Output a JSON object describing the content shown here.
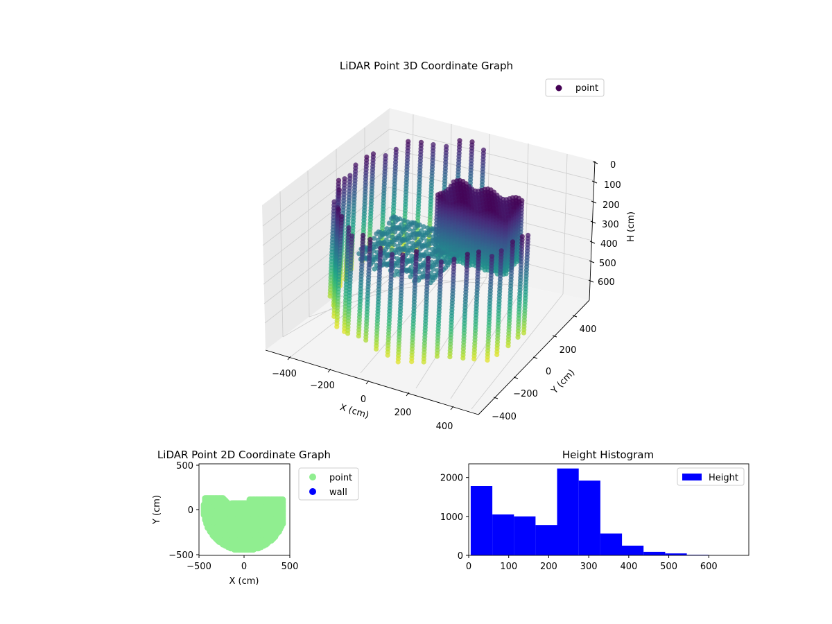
{
  "colors": {
    "point2d": "#90ee90",
    "wall2d": "#0000ff",
    "hist": "#0000ff",
    "viridis_dark": "#440154",
    "viridis_light": "#fde725"
  },
  "chart_data": [
    {
      "type": "scatter",
      "projection": "3d",
      "title": "LiDAR Point 3D Coordinate Graph",
      "xlabel": "X (cm)",
      "ylabel": "Y (cm)",
      "zlabel": "H (cm)",
      "xlim": [
        -500,
        450
      ],
      "ylim": [
        -500,
        450
      ],
      "zlim": [
        0,
        650
      ],
      "z_inverted": true,
      "colormap": "viridis",
      "color_by": "H",
      "grid": true,
      "legend": {
        "position": "top-right",
        "entries": [
          {
            "name": "point"
          }
        ]
      },
      "x_ticks": [
        "−400",
        "−200",
        "0",
        "200",
        "400"
      ],
      "y_ticks": [
        "−400",
        "−200",
        "0",
        "200",
        "400"
      ],
      "z_ticks": [
        "0",
        "100",
        "200",
        "300",
        "400",
        "500",
        "600"
      ],
      "series": [
        {
          "name": "wall",
          "description": "columns of points along a circular wall, heights 0–600",
          "radius": 420,
          "angle_range": [
            95,
            355
          ],
          "h_range": [
            30,
            560
          ]
        },
        {
          "name": "block",
          "description": "raised block near the back (x 0–300, y 0–150)",
          "x_range": [
            -20,
            300
          ],
          "y_range": [
            0,
            150
          ],
          "h_range": [
            20,
            320
          ]
        },
        {
          "name": "floor",
          "description": "floor plate in the middle",
          "x_range": [
            -250,
            100
          ],
          "y_range": [
            -250,
            100
          ],
          "h_value": 260
        }
      ]
    },
    {
      "type": "scatter",
      "title": "LiDAR Point 2D Coordinate Graph",
      "xlabel": "X (cm)",
      "ylabel": "Y (cm)",
      "xlim": [
        -500,
        500
      ],
      "ylim": [
        -500,
        500
      ],
      "x_ticks": [
        "−500",
        "0",
        "500"
      ],
      "y_ticks": [
        "−500",
        "0",
        "500"
      ],
      "legend": {
        "position": "outside-right",
        "entries": [
          {
            "name": "point"
          },
          {
            "name": "wall"
          }
        ]
      },
      "series": [
        {
          "name": "point",
          "region": "half-disc of radius 450 centred at origin, y from −500 to ~120"
        },
        {
          "name": "wall",
          "values": []
        }
      ]
    },
    {
      "type": "bar",
      "subtype": "histogram",
      "title": "Height Histogram",
      "xlabel": "",
      "ylabel": "",
      "xlim": [
        0,
        700
      ],
      "ylim": [
        0,
        2350
      ],
      "x_ticks": [
        "0",
        "100",
        "200",
        "300",
        "400",
        "500",
        "600"
      ],
      "y_ticks": [
        "0",
        "1000",
        "2000"
      ],
      "legend": {
        "position": "top-right",
        "entries": [
          {
            "name": "Height"
          }
        ]
      },
      "bin_edges": [
        5,
        59,
        113,
        167,
        221,
        275,
        329,
        383,
        437,
        491,
        545,
        599,
        653
      ],
      "series": [
        {
          "name": "Height",
          "values": [
            1780,
            1050,
            1000,
            780,
            2230,
            1920,
            560,
            250,
            90,
            50,
            15,
            5
          ]
        }
      ]
    }
  ]
}
